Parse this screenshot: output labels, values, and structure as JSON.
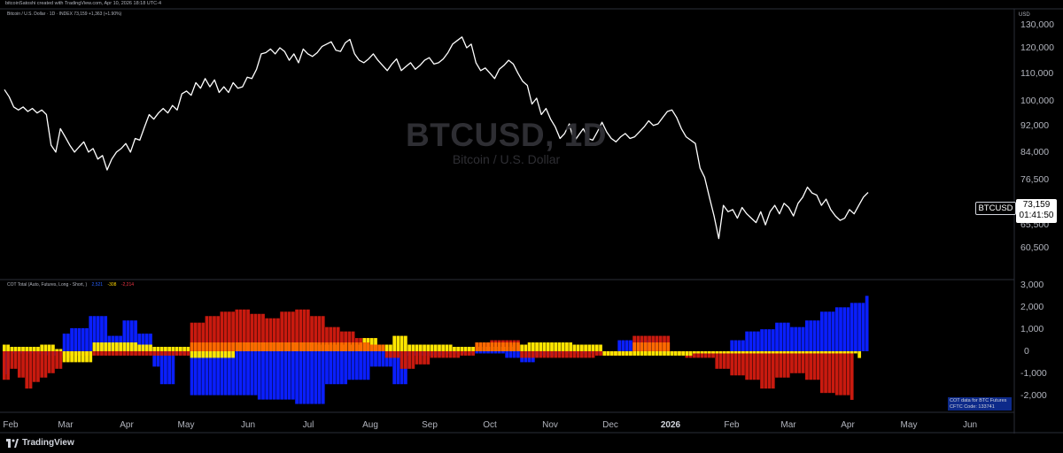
{
  "header": {
    "credit": "bitcoinSatoshi created with TradingView.com, Apr 10, 2026 18:18 UTC-4",
    "legend_main": "Bitcoin / U.S. Dollar · 1D · INDEX 73,159 +1,363 (+1.90%)",
    "currency": "USD"
  },
  "watermark": {
    "symbol": "BTCUSD, 1D",
    "name": "Bitcoin / U.S. Dollar"
  },
  "cot_legend": {
    "title": "COT Total (Auto, Futures, Long - Short, )",
    "v1": "2,521",
    "v2": "-308",
    "v3": "-2,214"
  },
  "cot_note": {
    "line1": "COT data for BTC Futures",
    "line2": "CFTC Code: 133741"
  },
  "price_tag": {
    "symbol": "BTCUSD",
    "price": "73,159",
    "countdown": "01:41:50"
  },
  "footer": {
    "brand": "TradingView"
  },
  "colors": {
    "line": "#ffffff",
    "blue": "#0a1fff",
    "red": "#c91a0f",
    "orange": "#ff6a00",
    "yellow": "#ffe600",
    "grid": "#2a2a2a"
  },
  "chart_data": [
    {
      "type": "line",
      "title": "BTCUSD, 1D",
      "series": [
        {
          "name": "BTCUSD",
          "values": [
            104000,
            101500,
            98000,
            97000,
            98000,
            96500,
            97500,
            96000,
            97000,
            95500,
            86000,
            84000,
            91000,
            88500,
            86000,
            84000,
            85500,
            87000,
            84000,
            85000,
            82000,
            83000,
            79000,
            82000,
            84000,
            85000,
            86500,
            84000,
            88000,
            87500,
            91500,
            95500,
            94000,
            96000,
            97500,
            96000,
            98500,
            97000,
            102500,
            103500,
            102000,
            106500,
            104500,
            108000,
            105000,
            107500,
            103000,
            105000,
            103000,
            106500,
            104500,
            105000,
            108500,
            108000,
            111500,
            117500,
            118000,
            119500,
            117500,
            120000,
            118500,
            115000,
            117500,
            114000,
            119500,
            117500,
            116500,
            118000,
            120500,
            121500,
            122500,
            119000,
            118500,
            122000,
            123500,
            117500,
            115000,
            114000,
            115500,
            117500,
            115000,
            113000,
            111000,
            113500,
            115500,
            111000,
            112500,
            114000,
            111500,
            113000,
            115000,
            116000,
            113500,
            114000,
            115500,
            118000,
            121500,
            123000,
            124500,
            120000,
            121500,
            114000,
            111000,
            112000,
            110000,
            108000,
            111500,
            113000,
            115000,
            113500,
            110000,
            107000,
            105500,
            99000,
            101000,
            95500,
            97500,
            94000,
            91500,
            88000,
            89500,
            92500,
            87000,
            89000,
            91000,
            88000,
            87500,
            90000,
            93000,
            90000,
            88000,
            87000,
            88500,
            89500,
            88000,
            88500,
            90000,
            91500,
            93500,
            92000,
            92500,
            94500,
            96500,
            97000,
            94500,
            91000,
            88500,
            87500,
            86500,
            79500,
            77000,
            72000,
            67500,
            62500,
            70000,
            68500,
            69000,
            67000,
            69500,
            68000,
            67000,
            66000,
            68500,
            65500,
            68500,
            70000,
            68000,
            70500,
            69500,
            67500,
            70500,
            72000,
            74500,
            73000,
            72500,
            70000,
            71500,
            69000,
            67500,
            66500,
            67000,
            69000,
            68000,
            70000,
            72000,
            73159
          ]
        }
      ],
      "x_ticks": [
        "Feb",
        "Mar",
        "Apr",
        "May",
        "Jun",
        "Jul",
        "Aug",
        "Sep",
        "Oct",
        "Nov",
        "Dec",
        "2026",
        "Feb",
        "Mar",
        "Apr",
        "May",
        "Jun"
      ],
      "y_ticks": [
        "130,000",
        "120,000",
        "110,000",
        "100,000",
        "92,000",
        "84,000",
        "76,500",
        "65,500",
        "60,500"
      ],
      "y_tick_values": [
        130000,
        120000,
        110000,
        100000,
        92000,
        84000,
        76500,
        65500,
        60500
      ],
      "y_scale": "log",
      "ylim": [
        57000,
        133000
      ],
      "grid": false,
      "last_value": 73159
    },
    {
      "type": "bar",
      "title": "COT Total (Auto, Futures, Long - Short, )",
      "series": [
        {
          "name": "blue",
          "values": [
            -1050,
            -1050,
            -100,
            -100,
            -100,
            -100,
            -100,
            -100,
            -100,
            -100,
            -150,
            -150,
            -200,
            -200,
            -200,
            -200,
            800,
            800,
            1050,
            1050,
            1050,
            1050,
            1050,
            1600,
            1600,
            1600,
            1600,
            1600,
            700,
            700,
            700,
            700,
            1400,
            1400,
            1400,
            1400,
            800,
            800,
            800,
            800,
            -700,
            -700,
            -1500,
            -1500,
            -1500,
            -1500,
            -100,
            -100,
            -100,
            -100,
            -2000,
            -2000,
            -2000,
            -2000,
            -2000,
            -2000,
            -2000,
            -2000,
            -2000,
            -2000,
            -2000,
            -2000,
            -2000,
            -2000,
            -2000,
            -2000,
            -2000,
            -2000,
            -2200,
            -2200,
            -2200,
            -2200,
            -2200,
            -2200,
            -2200,
            -2200,
            -2200,
            -2200,
            -2400,
            -2400,
            -2400,
            -2400,
            -2400,
            -2400,
            -2400,
            -2400,
            -1500,
            -1500,
            -1500,
            -1500,
            -1500,
            -1500,
            -1300,
            -1300,
            -1300,
            -1300,
            -1300,
            -1300,
            -700,
            -700,
            -700,
            -700,
            -700,
            -700,
            -1500,
            -1500,
            -1500,
            -1500,
            -200,
            -200,
            -200,
            -200,
            -200,
            -200,
            -200,
            -200,
            -200,
            -200,
            -100,
            -100,
            -100,
            -100,
            -100,
            -100,
            -100,
            -100,
            -100,
            -100,
            -100,
            -100,
            -100,
            -100,
            -100,
            -100,
            -300,
            -300,
            -300,
            -300,
            -500,
            -500,
            -500,
            -500,
            -200,
            -200,
            -200,
            -200,
            -200,
            -200,
            -100,
            -100,
            -100,
            -100,
            -100,
            -100,
            -100,
            -100,
            -100,
            -100,
            -100,
            -100,
            -100,
            -100,
            -100,
            -100,
            500,
            500,
            500,
            500,
            500,
            500,
            500,
            500,
            500,
            500,
            -100,
            -100,
            -100,
            -100,
            -100,
            -100,
            -100,
            -100,
            -100,
            -100,
            -100,
            -100,
            -100,
            -100,
            -100,
            -100,
            -100,
            -100,
            -100,
            -100,
            500,
            500,
            500,
            500,
            900,
            900,
            900,
            900,
            1000,
            1000,
            1000,
            1000,
            1300,
            1300,
            1300,
            1300,
            1100,
            1100,
            1100,
            1100,
            1400,
            1400,
            1400,
            1400,
            1800,
            1800,
            1800,
            1800,
            2000,
            2000,
            2000,
            2000,
            2200,
            2200,
            2200,
            2200,
            2521
          ]
        },
        {
          "name": "red",
          "values": [
            -1300,
            -1300,
            -800,
            -800,
            -1200,
            -1200,
            -1700,
            -1700,
            -1400,
            -1400,
            -1200,
            -1200,
            -1000,
            -1000,
            -800,
            -800,
            -300,
            -300,
            -200,
            -200,
            -200,
            -200,
            -200,
            -200,
            -200,
            -200,
            -200,
            -200,
            -200,
            -200,
            -200,
            -200,
            -200,
            -200,
            -200,
            -200,
            -200,
            -200,
            -200,
            -200,
            -200,
            -200,
            -200,
            -200,
            -200,
            -200,
            -200,
            -200,
            -200,
            -200,
            1300,
            1300,
            1300,
            1300,
            1600,
            1600,
            1600,
            1600,
            1800,
            1800,
            1800,
            1800,
            1900,
            1900,
            1900,
            1900,
            1700,
            1700,
            1700,
            1700,
            1500,
            1500,
            1500,
            1500,
            1800,
            1800,
            1800,
            1800,
            1900,
            1900,
            1900,
            1900,
            1600,
            1600,
            1600,
            1600,
            1100,
            1100,
            1100,
            1100,
            900,
            900,
            900,
            900,
            600,
            600,
            600,
            600,
            300,
            300,
            300,
            300,
            -300,
            -300,
            -300,
            -300,
            -800,
            -800,
            -800,
            -800,
            -600,
            -600,
            -600,
            -600,
            -300,
            -300,
            -300,
            -300,
            -300,
            -300,
            -300,
            -300,
            -200,
            -200,
            -200,
            -200,
            400,
            400,
            400,
            400,
            500,
            500,
            500,
            500,
            500,
            500,
            500,
            500,
            -300,
            -300,
            -300,
            -300,
            -300,
            -300,
            -300,
            -300,
            -300,
            -300,
            -300,
            -300,
            -300,
            -300,
            -300,
            -300,
            -300,
            -300,
            -300,
            -300,
            -200,
            -200,
            -200,
            -200,
            -200,
            -200,
            -200,
            -200,
            -200,
            -200,
            700,
            700,
            700,
            700,
            700,
            700,
            700,
            700,
            700,
            700,
            -100,
            -100,
            -100,
            -100,
            -300,
            -300,
            -300,
            -300,
            -300,
            -300,
            -300,
            -300,
            -800,
            -800,
            -800,
            -800,
            -1100,
            -1100,
            -1100,
            -1100,
            -1300,
            -1300,
            -1300,
            -1300,
            -1700,
            -1700,
            -1700,
            -1700,
            -1200,
            -1200,
            -1200,
            -1200,
            -1000,
            -1000,
            -1000,
            -1000,
            -1300,
            -1300,
            -1300,
            -1300,
            -1900,
            -1900,
            -1900,
            -1900,
            -2000,
            -2000,
            -2000,
            -2000,
            -2214
          ]
        },
        {
          "name": "yellow",
          "values": [
            300,
            300,
            200,
            200,
            200,
            200,
            200,
            200,
            200,
            200,
            300,
            300,
            300,
            300,
            100,
            100,
            -500,
            -500,
            -500,
            -500,
            -500,
            -500,
            -500,
            -500,
            400,
            400,
            400,
            400,
            400,
            400,
            400,
            400,
            400,
            400,
            400,
            400,
            300,
            300,
            300,
            300,
            200,
            200,
            200,
            200,
            200,
            200,
            200,
            200,
            200,
            200,
            -300,
            -300,
            -300,
            -300,
            -300,
            -300,
            -300,
            -300,
            -300,
            -300,
            -300,
            -300,
            400,
            400,
            400,
            400,
            400,
            400,
            400,
            400,
            400,
            400,
            400,
            400,
            400,
            400,
            400,
            400,
            400,
            400,
            400,
            400,
            400,
            400,
            300,
            300,
            300,
            300,
            300,
            300,
            300,
            300,
            300,
            300,
            300,
            300,
            600,
            600,
            600,
            600,
            300,
            300,
            300,
            300,
            700,
            700,
            700,
            700,
            300,
            300,
            300,
            300,
            300,
            300,
            300,
            300,
            300,
            300,
            300,
            300,
            200,
            200,
            200,
            200,
            200,
            200,
            200,
            200,
            200,
            200,
            200,
            200,
            200,
            200,
            200,
            200,
            300,
            300,
            300,
            300,
            400,
            400,
            400,
            400,
            400,
            400,
            400,
            400,
            400,
            400,
            400,
            400,
            300,
            300,
            300,
            300,
            300,
            300,
            300,
            300,
            -200,
            -200,
            -200,
            -200,
            -200,
            -200,
            -200,
            -200,
            -200,
            -200,
            -200,
            -200,
            -200,
            -200,
            -200,
            -200,
            -200,
            -200,
            -200,
            -200,
            -200,
            -200,
            -200,
            -200,
            -100,
            -100,
            -100,
            -100,
            -100,
            -100,
            -100,
            -100,
            -100,
            -100,
            -100,
            -100,
            -100,
            -100,
            -100,
            -100,
            -100,
            -100,
            -100,
            -100,
            -100,
            -100,
            -100,
            -100,
            -100,
            -100,
            -100,
            -100,
            -100,
            -100,
            -100,
            -100,
            -100,
            -100,
            -100,
            -100,
            -100,
            -100,
            -100,
            -100,
            -100,
            -100,
            -100,
            -100,
            -308
          ]
        }
      ],
      "y_ticks": [
        "3,000",
        "2,000",
        "1,000",
        "0",
        "-1,000",
        "-2,000"
      ],
      "y_tick_values": [
        3000,
        2000,
        1000,
        0,
        -1000,
        -2000
      ],
      "ylim": [
        -2700,
        3100
      ],
      "legend": "top-left"
    }
  ]
}
